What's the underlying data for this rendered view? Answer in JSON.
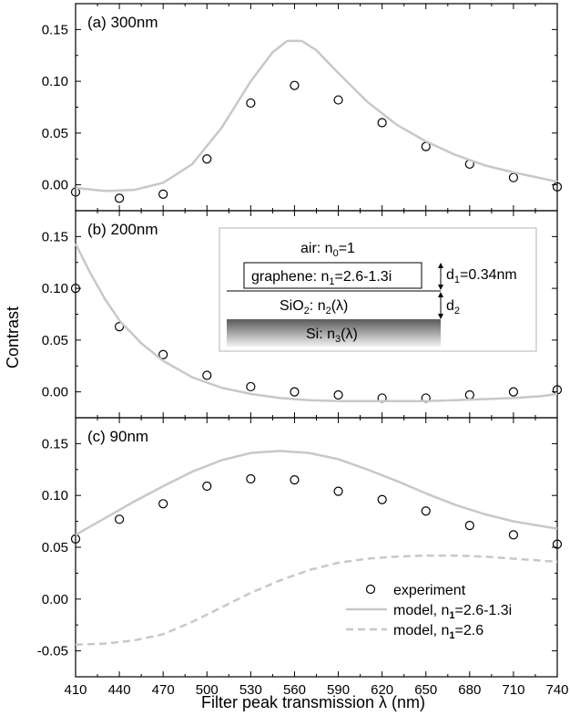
{
  "figure": {
    "xlabel": "Filter peak transmission λ (nm)",
    "ylabel": "Contrast",
    "x_ticks": [
      "410",
      "440",
      "470",
      "500",
      "530",
      "560",
      "590",
      "620",
      "650",
      "680",
      "710",
      "740"
    ]
  },
  "inset": {
    "air": "air: n",
    "air_sub": "0",
    "air_suffix": "=1",
    "graphene": "graphene: n",
    "graphene_sub": "1",
    "graphene_suffix": "=2.6-1.3i",
    "d1": "d",
    "d1_sub": "1",
    "d1_suffix": "=0.34nm",
    "sio2": "SiO",
    "sio2_sub": "2",
    "sio2_suffix": ": n",
    "sio2_sub2": "2",
    "sio2_suffix2": "(λ)",
    "d2": "d",
    "d2_sub": "2",
    "si": "Si: n",
    "si_sub": "3",
    "si_suffix": "(λ)"
  },
  "legend": {
    "experiment": "experiment",
    "model_complex": "model, n",
    "model_complex_sub": "1",
    "model_complex_suffix": "=2.6-1.3i",
    "model_real": "model, n",
    "model_real_sub": "1",
    "model_real_suffix": "=2.6"
  },
  "chart_data": [
    {
      "type": "scatter",
      "title": "(a) 300nm",
      "xlim": [
        410,
        740
      ],
      "ylim": [
        -0.025,
        0.175
      ],
      "yticks": [
        "0.00",
        "0.05",
        "0.10",
        "0.15"
      ],
      "yticks_values": [
        0.0,
        0.05,
        0.1,
        0.15
      ],
      "series": [
        {
          "kind": "points",
          "x": [
            410,
            440,
            470,
            500,
            530,
            560,
            590,
            620,
            650,
            680,
            710,
            740
          ],
          "y": [
            -0.007,
            -0.013,
            -0.009,
            0.025,
            0.079,
            0.096,
            0.082,
            0.06,
            0.037,
            0.02,
            0.007,
            -0.002
          ]
        },
        {
          "kind": "line",
          "x": [
            410,
            430,
            450,
            470,
            490,
            510,
            530,
            545,
            555,
            565,
            575,
            590,
            610,
            630,
            650,
            670,
            690,
            710,
            740
          ],
          "y": [
            -0.003,
            -0.006,
            -0.005,
            0.002,
            0.02,
            0.055,
            0.1,
            0.128,
            0.139,
            0.139,
            0.13,
            0.108,
            0.08,
            0.058,
            0.042,
            0.029,
            0.019,
            0.012,
            0.003
          ]
        }
      ]
    },
    {
      "type": "scatter",
      "title": "(b) 200nm",
      "xlim": [
        410,
        740
      ],
      "ylim": [
        -0.025,
        0.175
      ],
      "yticks": [
        "0.00",
        "0.05",
        "0.10",
        "0.15"
      ],
      "yticks_values": [
        0.0,
        0.05,
        0.1,
        0.15
      ],
      "series": [
        {
          "kind": "points",
          "x": [
            410,
            440,
            470,
            500,
            530,
            560,
            590,
            620,
            650,
            680,
            710,
            740
          ],
          "y": [
            0.1,
            0.063,
            0.036,
            0.016,
            0.005,
            0.0,
            -0.003,
            -0.006,
            -0.006,
            -0.003,
            0.0,
            0.002
          ]
        },
        {
          "kind": "line",
          "x": [
            410,
            420,
            430,
            440,
            455,
            470,
            490,
            510,
            530,
            550,
            570,
            590,
            610,
            630,
            650,
            670,
            690,
            710,
            730,
            740
          ],
          "y": [
            0.143,
            0.115,
            0.09,
            0.069,
            0.047,
            0.03,
            0.014,
            0.004,
            -0.002,
            -0.006,
            -0.008,
            -0.009,
            -0.009,
            -0.009,
            -0.009,
            -0.008,
            -0.007,
            -0.006,
            -0.004,
            -0.002
          ]
        }
      ]
    },
    {
      "type": "scatter",
      "title": "(c) 90nm",
      "xlim": [
        410,
        740
      ],
      "ylim": [
        -0.075,
        0.175
      ],
      "yticks": [
        "-0.05",
        "0.00",
        "0.05",
        "0.10",
        "0.15"
      ],
      "yticks_values": [
        -0.05,
        0.0,
        0.05,
        0.1,
        0.15
      ],
      "series": [
        {
          "kind": "points",
          "x": [
            410,
            440,
            470,
            500,
            530,
            560,
            590,
            620,
            650,
            680,
            710,
            740
          ],
          "y": [
            0.058,
            0.077,
            0.092,
            0.109,
            0.116,
            0.115,
            0.104,
            0.096,
            0.085,
            0.071,
            0.062,
            0.053
          ]
        },
        {
          "kind": "line",
          "x": [
            410,
            430,
            450,
            470,
            490,
            510,
            530,
            550,
            570,
            590,
            610,
            630,
            650,
            670,
            690,
            710,
            740
          ],
          "y": [
            0.062,
            0.078,
            0.094,
            0.109,
            0.123,
            0.134,
            0.141,
            0.143,
            0.141,
            0.135,
            0.125,
            0.114,
            0.102,
            0.091,
            0.082,
            0.075,
            0.068
          ]
        },
        {
          "kind": "dashed",
          "x": [
            410,
            430,
            450,
            470,
            490,
            510,
            530,
            550,
            570,
            590,
            610,
            630,
            650,
            670,
            690,
            710,
            740
          ],
          "y": [
            -0.044,
            -0.043,
            -0.04,
            -0.034,
            -0.022,
            -0.008,
            0.006,
            0.018,
            0.028,
            0.035,
            0.039,
            0.041,
            0.042,
            0.042,
            0.041,
            0.039,
            0.036
          ]
        }
      ]
    }
  ]
}
